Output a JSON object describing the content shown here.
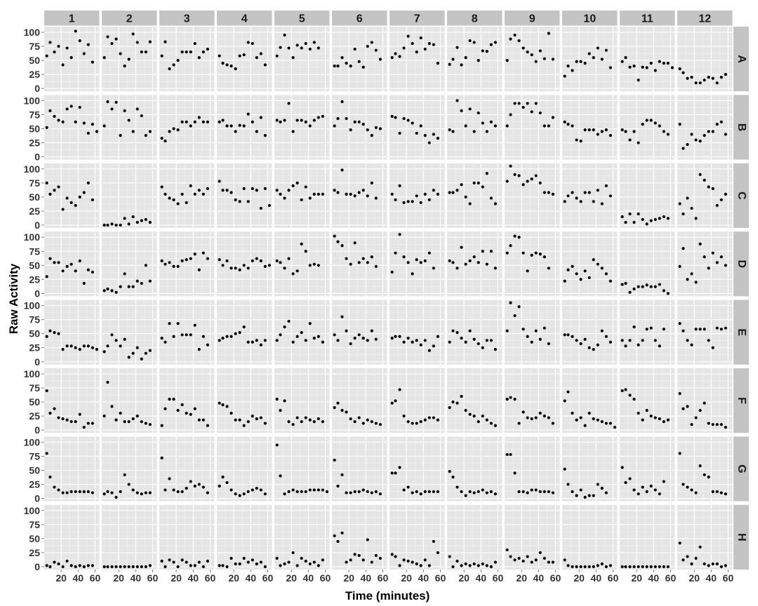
{
  "chart_data": {
    "type": "scatter",
    "facet": "grid",
    "xlabel": "Time (minutes)",
    "ylabel": "Raw Activity",
    "xlim": [
      0,
      65
    ],
    "ylim": [
      -5,
      110
    ],
    "x_ticks": [
      20,
      40,
      60
    ],
    "y_ticks": [
      0,
      25,
      50,
      75,
      100
    ],
    "columns": [
      "1",
      "2",
      "3",
      "4",
      "5",
      "6",
      "7",
      "8",
      "9",
      "10",
      "11",
      "12"
    ],
    "rows": [
      "A",
      "B",
      "C",
      "D",
      "E",
      "F",
      "G",
      "H"
    ],
    "x": [
      3,
      7,
      12,
      17,
      22,
      27,
      32,
      37,
      42,
      47,
      52,
      57,
      62
    ],
    "series": {
      "A": [
        [
          58,
          82,
          65,
          75,
          42,
          72,
          55,
          102,
          85,
          62,
          78,
          47
        ],
        [
          55,
          92,
          80,
          88,
          62,
          40,
          52,
          97,
          82,
          65,
          65,
          83
        ],
        [
          58,
          83,
          35,
          42,
          50,
          65,
          65,
          65,
          80,
          55,
          65,
          70
        ],
        [
          58,
          45,
          42,
          40,
          35,
          58,
          60,
          82,
          80,
          55,
          62,
          42
        ],
        [
          58,
          73,
          95,
          72,
          55,
          77,
          72,
          80,
          70,
          82,
          72
        ],
        [
          40,
          40,
          55,
          45,
          40,
          70,
          48,
          38,
          75,
          82,
          68,
          52
        ],
        [
          55,
          62,
          57,
          72,
          93,
          80,
          65,
          90,
          70,
          80,
          78,
          45
        ],
        [
          43,
          52,
          73,
          42,
          55,
          85,
          82,
          50,
          67,
          66,
          78,
          82
        ],
        [
          50,
          88,
          95,
          85,
          72,
          65,
          60,
          48,
          67,
          53,
          98,
          52
        ],
        [
          22,
          40,
          32,
          48,
          48,
          45,
          62,
          55,
          72,
          52,
          68,
          37
        ],
        [
          48,
          55,
          38,
          40,
          15,
          38,
          37,
          45,
          32,
          48,
          45,
          45,
          37
        ],
        [
          35,
          28,
          18,
          20,
          10,
          10,
          15,
          20,
          18,
          10,
          20,
          25
        ]
      ],
      "B": [
        [
          52,
          82,
          72,
          65,
          62,
          85,
          90,
          62,
          88,
          60,
          42,
          58,
          45
        ],
        [
          55,
          98,
          85,
          97,
          38,
          82,
          65,
          45,
          85,
          73,
          38,
          45
        ],
        [
          33,
          28,
          45,
          50,
          48,
          62,
          62,
          55,
          62,
          70,
          62,
          62
        ],
        [
          62,
          65,
          55,
          55,
          45,
          56,
          55,
          76,
          62,
          45,
          70,
          38
        ],
        [
          65,
          62,
          65,
          95,
          45,
          65,
          65,
          62,
          55,
          65,
          70,
          72
        ],
        [
          55,
          68,
          98,
          68,
          48,
          62,
          62,
          58,
          48,
          38,
          52,
          50
        ],
        [
          72,
          70,
          42,
          68,
          65,
          60,
          42,
          55,
          38,
          25,
          40,
          33
        ],
        [
          48,
          45,
          100,
          82,
          55,
          85,
          45,
          78,
          60,
          45,
          62,
          55
        ],
        [
          55,
          75,
          95,
          95,
          88,
          95,
          80,
          95,
          78,
          55,
          55,
          70
        ],
        [
          62,
          58,
          55,
          30,
          28,
          48,
          48,
          48,
          40,
          45,
          48,
          38
        ],
        [
          48,
          45,
          30,
          45,
          25,
          58,
          65,
          65,
          60,
          55,
          45,
          40
        ],
        [
          58,
          15,
          22,
          40,
          30,
          28,
          38,
          45,
          45,
          58,
          62,
          40
        ]
      ],
      "C": [
        [
          75,
          55,
          62,
          68,
          28,
          48,
          40,
          35,
          50,
          58,
          75,
          45
        ],
        [
          0,
          0,
          2,
          0,
          0,
          12,
          2,
          15,
          5,
          8,
          10,
          5
        ],
        [
          68,
          55,
          48,
          45,
          38,
          55,
          40,
          70,
          55,
          62,
          55,
          65
        ],
        [
          78,
          62,
          62,
          58,
          45,
          42,
          65,
          42,
          65,
          62,
          30,
          65,
          35
        ],
        [
          62,
          55,
          48,
          62,
          70,
          75,
          45,
          68,
          48,
          55,
          55,
          55
        ],
        [
          62,
          58,
          98,
          55,
          55,
          52,
          58,
          62,
          52,
          75,
          48
        ],
        [
          55,
          45,
          70,
          40,
          42,
          42,
          52,
          40,
          55,
          45,
          62,
          55
        ],
        [
          58,
          58,
          62,
          72,
          50,
          38,
          75,
          75,
          68,
          92,
          48,
          38
        ],
        [
          78,
          105,
          90,
          88,
          72,
          78,
          82,
          88,
          75,
          58,
          58,
          55
        ],
        [
          42,
          52,
          58,
          48,
          42,
          58,
          58,
          42,
          62,
          38,
          70,
          52
        ],
        [
          15,
          5,
          20,
          5,
          20,
          10,
          2,
          8,
          10,
          12,
          15,
          12
        ],
        [
          38,
          20,
          48,
          30,
          12,
          90,
          80,
          68,
          65,
          35,
          45,
          55
        ]
      ],
      "D": [
        [
          30,
          62,
          55,
          55,
          40,
          48,
          52,
          40,
          58,
          18,
          42,
          38
        ],
        [
          5,
          8,
          5,
          2,
          12,
          35,
          12,
          12,
          22,
          18,
          50,
          22
        ],
        [
          58,
          52,
          55,
          48,
          48,
          58,
          60,
          62,
          70,
          42,
          72,
          62
        ],
        [
          60,
          50,
          58,
          45,
          45,
          42,
          50,
          45,
          58,
          62,
          58,
          48,
          50
        ],
        [
          58,
          55,
          45,
          62,
          35,
          40,
          88,
          75,
          50,
          52,
          50
        ],
        [
          102,
          92,
          85,
          62,
          52,
          90,
          55,
          62,
          55,
          65,
          48
        ],
        [
          38,
          72,
          105,
          65,
          55,
          35,
          60,
          55,
          58,
          72,
          45
        ],
        [
          58,
          55,
          45,
          82,
          52,
          58,
          65,
          55,
          75,
          52,
          75,
          45
        ],
        [
          72,
          85,
          102,
          100,
          72,
          40,
          68,
          72,
          70,
          65,
          45
        ],
        [
          22,
          42,
          48,
          35,
          25,
          40,
          28,
          60,
          52,
          45,
          35,
          22
        ],
        [
          16,
          18,
          2,
          8,
          12,
          12,
          15,
          12,
          12,
          16,
          5,
          0
        ],
        [
          48,
          80,
          25,
          35,
          20,
          88,
          65,
          45,
          72,
          55,
          65,
          50
        ]
      ],
      "E": [
        [
          45,
          55,
          52,
          50,
          22,
          28,
          28,
          25,
          22,
          28,
          28,
          25,
          22
        ],
        [
          18,
          28,
          48,
          38,
          28,
          40,
          8,
          15,
          25,
          5,
          15,
          20
        ],
        [
          42,
          35,
          68,
          45,
          68,
          48,
          48,
          48,
          65,
          22,
          45,
          30
        ],
        [
          38,
          42,
          45,
          45,
          50,
          52,
          62,
          35,
          35,
          38,
          30,
          38
        ],
        [
          38,
          48,
          62,
          72,
          35,
          45,
          52,
          38,
          68,
          42,
          45,
          35
        ],
        [
          48,
          38,
          80,
          55,
          32,
          42,
          48,
          42,
          38,
          55,
          40
        ],
        [
          42,
          45,
          45,
          35,
          42,
          35,
          38,
          30,
          38,
          20,
          28,
          45
        ],
        [
          35,
          55,
          52,
          42,
          35,
          55,
          40,
          32,
          25,
          38,
          38,
          22
        ],
        [
          55,
          105,
          82,
          98,
          58,
          45,
          35,
          55,
          40,
          60,
          32
        ],
        [
          48,
          48,
          45,
          38,
          32,
          40,
          25,
          22,
          30,
          55,
          45,
          35
        ],
        [
          38,
          28,
          38,
          62,
          30,
          38,
          58,
          60,
          38,
          28,
          58
        ],
        [
          68,
          55,
          38,
          30,
          58,
          58,
          58,
          38,
          25,
          60,
          58,
          60
        ]
      ],
      "F": [
        [
          70,
          30,
          38,
          22,
          20,
          18,
          15,
          15,
          28,
          5,
          12,
          12
        ],
        [
          25,
          85,
          42,
          18,
          30,
          15,
          15,
          20,
          25,
          15,
          12,
          10
        ],
        [
          8,
          38,
          55,
          55,
          35,
          45,
          30,
          28,
          38,
          18,
          18,
          8
        ],
        [
          48,
          45,
          42,
          30,
          18,
          18,
          8,
          15,
          25,
          20,
          22,
          12
        ],
        [
          55,
          35,
          52,
          15,
          10,
          22,
          15,
          22,
          18,
          15,
          20,
          15
        ],
        [
          40,
          48,
          35,
          32,
          20,
          15,
          22,
          12,
          18,
          15,
          12,
          10
        ],
        [
          48,
          52,
          72,
          25,
          15,
          12,
          12,
          15,
          18,
          22,
          22,
          18
        ],
        [
          40,
          50,
          48,
          60,
          35,
          28,
          25,
          15,
          25,
          18,
          12,
          8
        ],
        [
          55,
          58,
          55,
          12,
          32,
          22,
          20,
          22,
          30,
          25,
          22,
          12
        ],
        [
          52,
          68,
          30,
          18,
          22,
          8,
          30,
          20,
          18,
          15,
          12,
          12,
          5
        ],
        [
          70,
          72,
          62,
          55,
          30,
          18,
          35,
          25,
          22,
          20,
          15,
          18
        ],
        [
          65,
          38,
          42,
          10,
          22,
          35,
          48,
          12,
          10,
          10,
          10,
          5
        ]
      ],
      "G": [
        [
          80,
          38,
          20,
          15,
          10,
          10,
          12,
          12,
          12,
          12,
          12,
          10
        ],
        [
          8,
          12,
          10,
          2,
          12,
          42,
          25,
          15,
          10,
          8,
          10,
          10
        ],
        [
          72,
          15,
          35,
          15,
          12,
          12,
          18,
          30,
          22,
          25,
          20,
          10
        ],
        [
          22,
          38,
          28,
          15,
          8,
          5,
          8,
          12,
          15,
          18,
          15,
          8
        ],
        [
          95,
          40,
          8,
          12,
          15,
          12,
          12,
          12,
          15,
          15,
          15,
          15,
          12
        ],
        [
          68,
          22,
          42,
          10,
          10,
          12,
          12,
          15,
          12,
          10,
          12,
          8
        ],
        [
          45,
          45,
          55,
          15,
          20,
          10,
          12,
          8,
          12,
          12,
          12,
          12
        ],
        [
          48,
          38,
          20,
          12,
          5,
          12,
          10,
          12,
          15,
          10,
          12,
          8
        ],
        [
          78,
          78,
          45,
          12,
          12,
          10,
          15,
          15,
          12,
          12,
          12,
          10
        ],
        [
          52,
          25,
          12,
          5,
          15,
          2,
          5,
          5,
          25,
          18,
          10
        ],
        [
          55,
          28,
          35,
          15,
          8,
          20,
          12,
          22,
          15,
          8,
          30
        ],
        [
          80,
          25,
          20,
          15,
          10,
          58,
          42,
          38,
          12,
          12,
          10,
          8
        ]
      ],
      "H": [
        [
          2,
          0,
          8,
          5,
          0,
          10,
          2,
          0,
          2,
          0,
          2,
          2
        ],
        [
          0,
          0,
          0,
          0,
          0,
          0,
          0,
          0,
          0,
          0,
          0,
          2
        ],
        [
          10,
          0,
          12,
          8,
          0,
          12,
          8,
          2,
          2,
          8,
          0,
          10
        ],
        [
          2,
          2,
          0,
          15,
          5,
          5,
          15,
          8,
          12,
          5,
          8,
          0
        ],
        [
          15,
          2,
          5,
          8,
          25,
          2,
          15,
          10,
          5,
          8,
          2,
          12
        ],
        [
          55,
          45,
          60,
          8,
          12,
          22,
          20,
          12,
          48,
          8,
          20,
          15
        ],
        [
          22,
          18,
          2,
          12,
          10,
          8,
          5,
          2,
          12,
          2,
          45,
          25
        ],
        [
          18,
          0,
          10,
          2,
          5,
          2,
          5,
          2,
          5,
          2,
          0,
          8
        ],
        [
          30,
          18,
          12,
          15,
          10,
          18,
          8,
          12,
          25,
          15,
          8,
          8
        ],
        [
          12,
          2,
          0,
          0,
          0,
          0,
          0,
          0,
          2,
          5,
          0,
          2
        ],
        [
          0,
          0,
          0,
          0,
          0,
          0,
          0,
          0,
          0,
          0,
          0,
          0
        ],
        [
          42,
          12,
          18,
          5,
          15,
          35,
          5,
          2,
          5,
          5,
          0,
          2
        ]
      ]
    }
  },
  "colors": {
    "panel_bg": "#e5e5e5",
    "grid_major": "#ffffff",
    "grid_minor": "#f2f2f2",
    "strip_bg": "#c4c4c4",
    "point": "#000000",
    "tick": "#7f7f7f"
  }
}
